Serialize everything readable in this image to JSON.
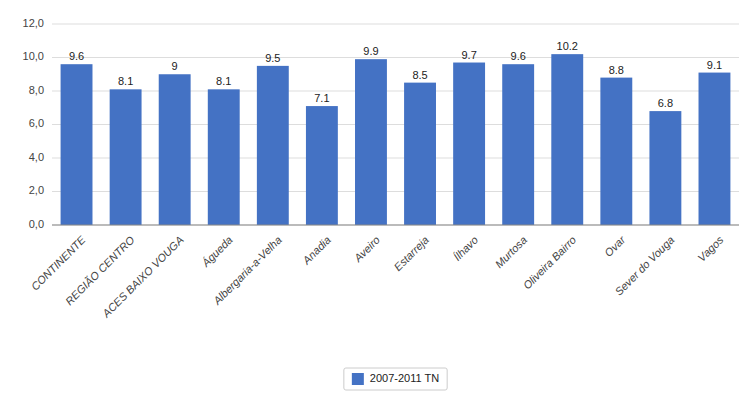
{
  "chart_data": {
    "type": "bar",
    "categories": [
      "CONTINENTE",
      "REGIÃO CENTRO",
      "ACES BAIXO VOUGA",
      "Águeda",
      "Albergaria-a-Velha",
      "Anadia",
      "Aveiro",
      "Estarreja",
      "Ílhavo",
      "Murtosa",
      "Oliveira Bairro",
      "Ovar",
      "Sever do Vouga",
      "Vagos"
    ],
    "series": [
      {
        "name": "2007-2011 TN",
        "color": "#4472C4",
        "values": [
          9.6,
          8.1,
          9.0,
          8.1,
          9.5,
          7.1,
          9.9,
          8.5,
          9.7,
          9.6,
          10.2,
          8.8,
          6.8,
          9.1
        ]
      }
    ],
    "ylim": [
      0,
      12
    ],
    "yticks": [
      {
        "value": 0.0,
        "label": "0,0"
      },
      {
        "value": 2.0,
        "label": "2,0"
      },
      {
        "value": 4.0,
        "label": "4,0"
      },
      {
        "value": 6.0,
        "label": "6,0"
      },
      {
        "value": 8.0,
        "label": "8,0"
      },
      {
        "value": 10.0,
        "label": "10,0"
      },
      {
        "value": 12.0,
        "label": "12,0"
      }
    ],
    "grid": true,
    "data_labels": true,
    "legend": "bottom"
  }
}
